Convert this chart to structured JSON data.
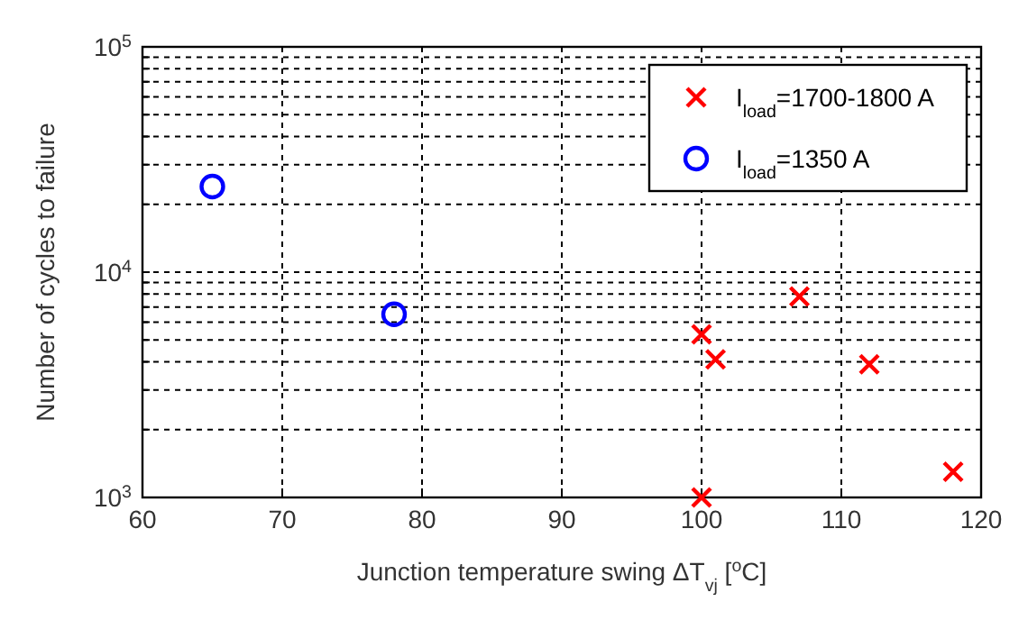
{
  "chart_data": {
    "type": "scatter",
    "xlabel": "Junction temperature swing ΔT$_{vj}$ [$^{o}$C]",
    "ylabel": "Number of cycles to failure",
    "xlim": [
      60,
      120
    ],
    "xticks": [
      60,
      70,
      80,
      90,
      100,
      110,
      120
    ],
    "ylim": [
      1000,
      100000
    ],
    "yticks": [
      {
        "value": 1000,
        "label": "10$^{3}$"
      },
      {
        "value": 2000,
        "label": null
      },
      {
        "value": 3000,
        "label": null
      },
      {
        "value": 4000,
        "label": null
      },
      {
        "value": 5000,
        "label": null
      },
      {
        "value": 6000,
        "label": null
      },
      {
        "value": 7000,
        "label": null
      },
      {
        "value": 8000,
        "label": null
      },
      {
        "value": 9000,
        "label": null
      },
      {
        "value": 10000,
        "label": "10$^{4}$"
      },
      {
        "value": 20000,
        "label": null
      },
      {
        "value": 30000,
        "label": null
      },
      {
        "value": 40000,
        "label": null
      },
      {
        "value": 50000,
        "label": null
      },
      {
        "value": 60000,
        "label": null
      },
      {
        "value": 70000,
        "label": null
      },
      {
        "value": 80000,
        "label": null
      },
      {
        "value": 90000,
        "label": null
      },
      {
        "value": 100000,
        "label": "10$^{5}$"
      }
    ],
    "log": "y",
    "grid": true,
    "legend": "top right",
    "series": [
      {
        "name": "I$_{load}$=1700-1800 A",
        "color": "#ff0000",
        "marker": "cross",
        "x": [
          100,
          100,
          101,
          107,
          112,
          118
        ],
        "values": [
          1000,
          5300,
          4100,
          7800,
          3900,
          1300
        ]
      },
      {
        "name": "I$_{load}$=1350 A",
        "color": "#0000ff",
        "marker": "circle",
        "x": [
          65,
          78
        ],
        "values": [
          24000,
          6500
        ]
      }
    ]
  }
}
